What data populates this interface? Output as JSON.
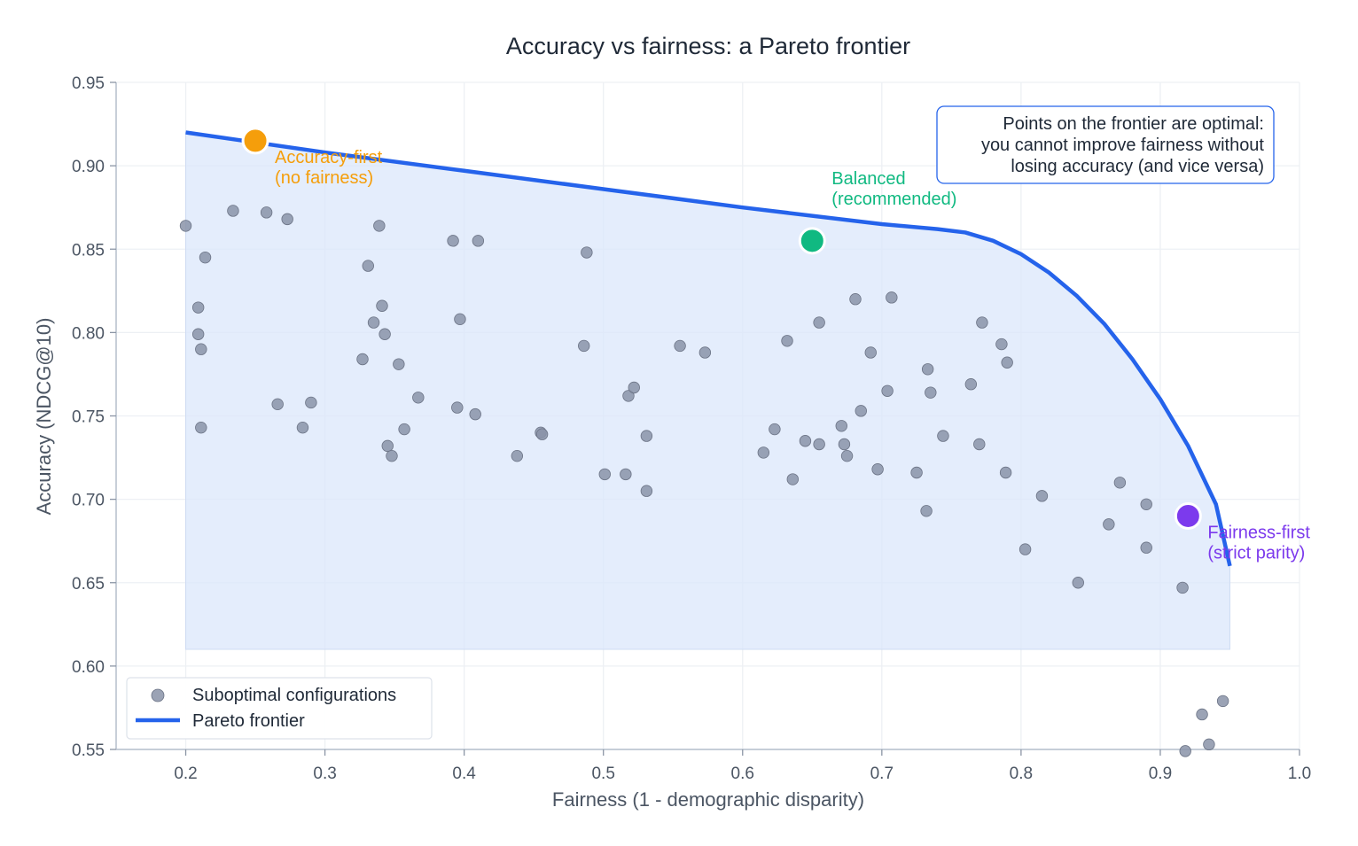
{
  "chart_data": {
    "type": "scatter",
    "title": "Accuracy vs fairness: a Pareto frontier",
    "xlabel": "Fairness (1 - demographic disparity)",
    "ylabel": "Accuracy (NDCG@10)",
    "xlim": [
      0.15,
      1.0
    ],
    "ylim": [
      0.55,
      0.95
    ],
    "xticks": [
      "0.2",
      "0.3",
      "0.4",
      "0.5",
      "0.6",
      "0.7",
      "0.8",
      "0.9",
      "1.0"
    ],
    "yticks": [
      "0.55",
      "0.60",
      "0.65",
      "0.70",
      "0.75",
      "0.80",
      "0.85",
      "0.90",
      "0.95"
    ],
    "grid": true,
    "legend_position": "bottom-left",
    "legend": [
      "Suboptimal configurations",
      "Pareto frontier"
    ],
    "colors": {
      "frontier": "#2563eb",
      "fill": "#dbe7fb",
      "points": "#8a93a8",
      "accuracy_first": "#f59e0b",
      "balanced": "#10b981",
      "fairness_first": "#7c3aed"
    },
    "frontier_fill_floor": 0.61,
    "frontier": [
      {
        "x": 0.2,
        "y": 0.92
      },
      {
        "x": 0.3,
        "y": 0.908
      },
      {
        "x": 0.4,
        "y": 0.897
      },
      {
        "x": 0.5,
        "y": 0.886
      },
      {
        "x": 0.6,
        "y": 0.875
      },
      {
        "x": 0.7,
        "y": 0.865
      },
      {
        "x": 0.74,
        "y": 0.862
      },
      {
        "x": 0.76,
        "y": 0.86
      },
      {
        "x": 0.78,
        "y": 0.855
      },
      {
        "x": 0.8,
        "y": 0.847
      },
      {
        "x": 0.82,
        "y": 0.836
      },
      {
        "x": 0.84,
        "y": 0.822
      },
      {
        "x": 0.86,
        "y": 0.805
      },
      {
        "x": 0.88,
        "y": 0.784
      },
      {
        "x": 0.9,
        "y": 0.76
      },
      {
        "x": 0.92,
        "y": 0.732
      },
      {
        "x": 0.94,
        "y": 0.697
      },
      {
        "x": 0.95,
        "y": 0.66
      }
    ],
    "suboptimal": [
      {
        "x": 0.2,
        "y": 0.864
      },
      {
        "x": 0.234,
        "y": 0.873
      },
      {
        "x": 0.258,
        "y": 0.872
      },
      {
        "x": 0.273,
        "y": 0.868
      },
      {
        "x": 0.339,
        "y": 0.864
      },
      {
        "x": 0.214,
        "y": 0.845
      },
      {
        "x": 0.209,
        "y": 0.815
      },
      {
        "x": 0.209,
        "y": 0.799
      },
      {
        "x": 0.211,
        "y": 0.79
      },
      {
        "x": 0.211,
        "y": 0.743
      },
      {
        "x": 0.266,
        "y": 0.757
      },
      {
        "x": 0.284,
        "y": 0.743
      },
      {
        "x": 0.29,
        "y": 0.758
      },
      {
        "x": 0.331,
        "y": 0.84
      },
      {
        "x": 0.341,
        "y": 0.816
      },
      {
        "x": 0.335,
        "y": 0.806
      },
      {
        "x": 0.343,
        "y": 0.799
      },
      {
        "x": 0.327,
        "y": 0.784
      },
      {
        "x": 0.353,
        "y": 0.781
      },
      {
        "x": 0.367,
        "y": 0.761
      },
      {
        "x": 0.357,
        "y": 0.742
      },
      {
        "x": 0.345,
        "y": 0.732
      },
      {
        "x": 0.348,
        "y": 0.726
      },
      {
        "x": 0.392,
        "y": 0.855
      },
      {
        "x": 0.41,
        "y": 0.855
      },
      {
        "x": 0.397,
        "y": 0.808
      },
      {
        "x": 0.395,
        "y": 0.755
      },
      {
        "x": 0.408,
        "y": 0.751
      },
      {
        "x": 0.438,
        "y": 0.726
      },
      {
        "x": 0.455,
        "y": 0.74
      },
      {
        "x": 0.456,
        "y": 0.739
      },
      {
        "x": 0.488,
        "y": 0.848
      },
      {
        "x": 0.486,
        "y": 0.792
      },
      {
        "x": 0.501,
        "y": 0.715
      },
      {
        "x": 0.516,
        "y": 0.715
      },
      {
        "x": 0.518,
        "y": 0.762
      },
      {
        "x": 0.522,
        "y": 0.767
      },
      {
        "x": 0.531,
        "y": 0.738
      },
      {
        "x": 0.531,
        "y": 0.705
      },
      {
        "x": 0.555,
        "y": 0.792
      },
      {
        "x": 0.573,
        "y": 0.788
      },
      {
        "x": 0.615,
        "y": 0.728
      },
      {
        "x": 0.623,
        "y": 0.742
      },
      {
        "x": 0.632,
        "y": 0.795
      },
      {
        "x": 0.636,
        "y": 0.712
      },
      {
        "x": 0.645,
        "y": 0.735
      },
      {
        "x": 0.655,
        "y": 0.806
      },
      {
        "x": 0.655,
        "y": 0.733
      },
      {
        "x": 0.671,
        "y": 0.744
      },
      {
        "x": 0.673,
        "y": 0.733
      },
      {
        "x": 0.675,
        "y": 0.726
      },
      {
        "x": 0.681,
        "y": 0.82
      },
      {
        "x": 0.685,
        "y": 0.753
      },
      {
        "x": 0.692,
        "y": 0.788
      },
      {
        "x": 0.697,
        "y": 0.718
      },
      {
        "x": 0.704,
        "y": 0.765
      },
      {
        "x": 0.707,
        "y": 0.821
      },
      {
        "x": 0.725,
        "y": 0.716
      },
      {
        "x": 0.732,
        "y": 0.693
      },
      {
        "x": 0.733,
        "y": 0.778
      },
      {
        "x": 0.735,
        "y": 0.764
      },
      {
        "x": 0.744,
        "y": 0.738
      },
      {
        "x": 0.764,
        "y": 0.769
      },
      {
        "x": 0.77,
        "y": 0.733
      },
      {
        "x": 0.772,
        "y": 0.806
      },
      {
        "x": 0.786,
        "y": 0.793
      },
      {
        "x": 0.789,
        "y": 0.716
      },
      {
        "x": 0.79,
        "y": 0.782
      },
      {
        "x": 0.803,
        "y": 0.67
      },
      {
        "x": 0.815,
        "y": 0.702
      },
      {
        "x": 0.841,
        "y": 0.65
      },
      {
        "x": 0.863,
        "y": 0.685
      },
      {
        "x": 0.871,
        "y": 0.71
      },
      {
        "x": 0.89,
        "y": 0.697
      },
      {
        "x": 0.89,
        "y": 0.671
      },
      {
        "x": 0.916,
        "y": 0.647
      },
      {
        "x": 0.93,
        "y": 0.571
      },
      {
        "x": 0.935,
        "y": 0.553
      },
      {
        "x": 0.945,
        "y": 0.579
      },
      {
        "x": 0.918,
        "y": 0.549
      }
    ],
    "highlights": [
      {
        "name": "accuracy-first",
        "x": 0.25,
        "y": 0.915,
        "label_lines": [
          "Accuracy-first",
          "(no fairness)"
        ],
        "color_key": "accuracy_first"
      },
      {
        "name": "balanced",
        "x": 0.65,
        "y": 0.855,
        "label_lines": [
          "Balanced",
          "(recommended)"
        ],
        "color_key": "balanced"
      },
      {
        "name": "fairness-first",
        "x": 0.92,
        "y": 0.69,
        "label_lines": [
          "Fairness-first",
          "(strict parity)"
        ],
        "color_key": "fairness_first"
      }
    ],
    "note": [
      "Points on the frontier are optimal:",
      "you cannot improve fairness without",
      "losing accuracy (and vice versa)"
    ]
  }
}
